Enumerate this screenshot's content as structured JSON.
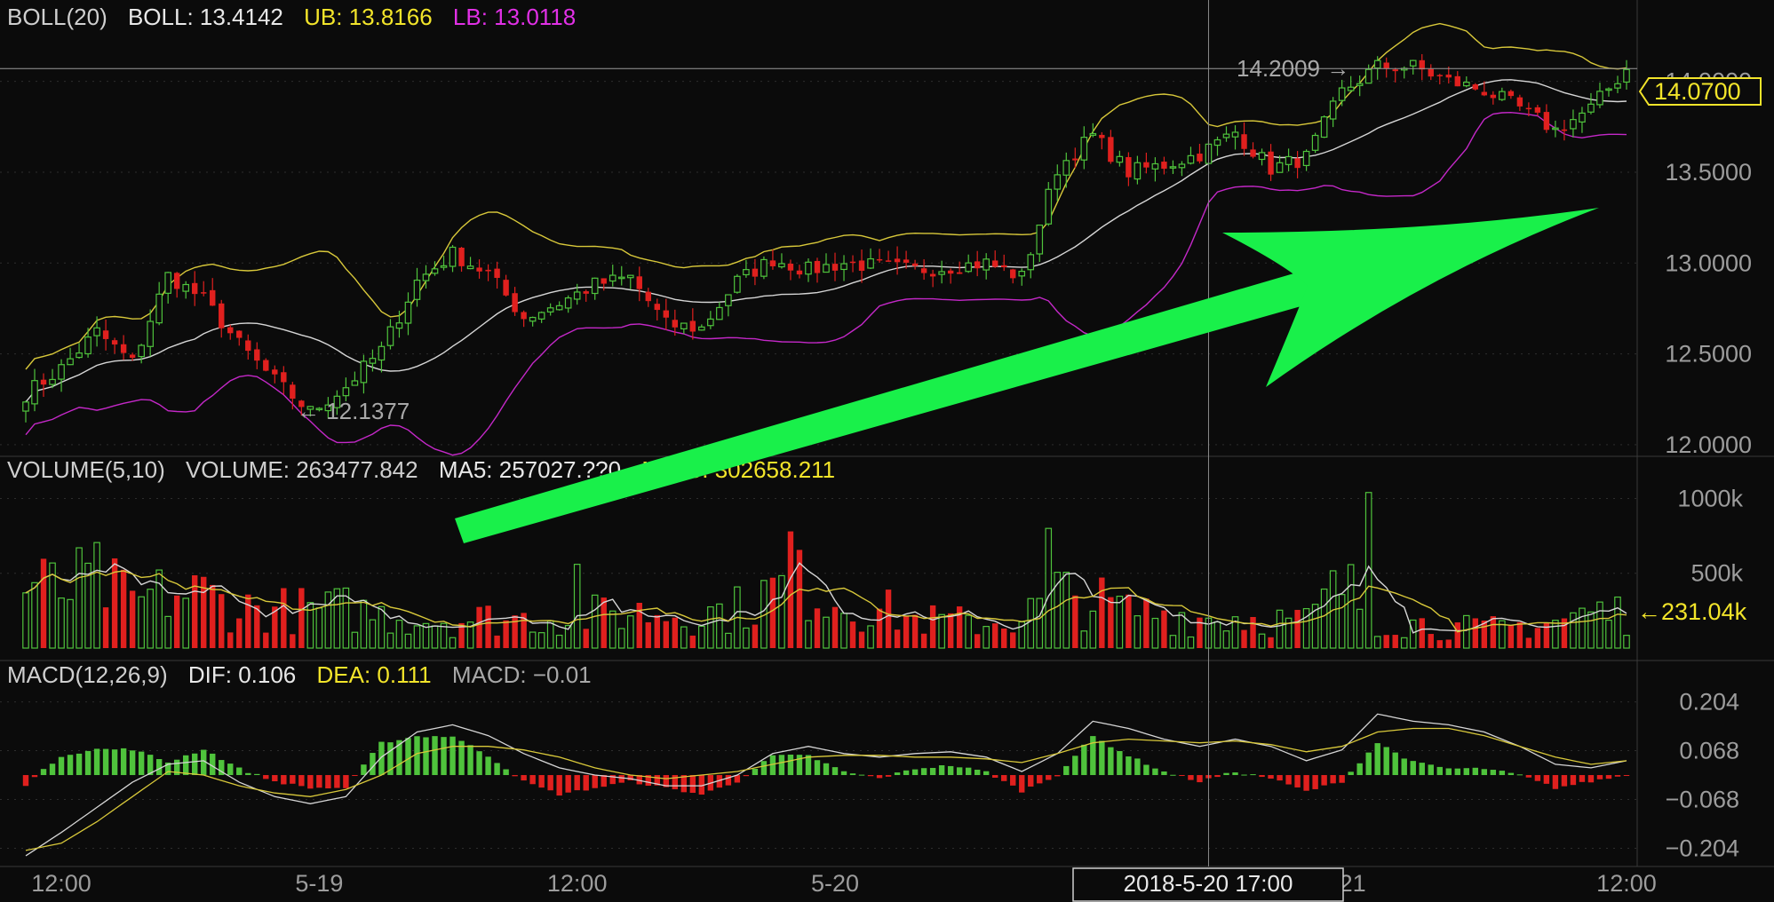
{
  "colors": {
    "background": "#0b0b0b",
    "up": "#4fc33c",
    "down": "#e0201e",
    "boll_mid": "#d6d6d6",
    "boll_ub": "#d8c83a",
    "boll_lb": "#c428c8",
    "ma5": "#d6d6d6",
    "ma10": "#d8c83a",
    "dif": "#d6d6d6",
    "dea": "#d8c83a",
    "label": "#b8b8b8",
    "yellow": "#f2e42a",
    "magenta": "#e130e6",
    "arrow": "#19f04a"
  },
  "header": {
    "boll": {
      "name": "BOLL(20)",
      "boll_label": "BOLL: 13.4142",
      "ub_label": "UB: 13.8166",
      "lb_label": "LB: 13.0118"
    },
    "volume": {
      "name": "VOLUME(5,10)",
      "volume_label": "VOLUME: 263477.842",
      "ma5_label": "MA5: 257027.??0",
      "ma10_label": "MA10: 302658.211"
    },
    "macd": {
      "name": "MACD(12,26,9)",
      "dif_label": "DIF: 0.106",
      "dea_label": "DEA: 0.111",
      "macd_label": "MACD: −0.01"
    }
  },
  "annotations": {
    "high_label": "14.2009 →",
    "low_label": "← 12.1377",
    "last_price": "14.0700",
    "last_volume": "←231.04k",
    "crosshair_time": "2018‑5‑20  17:00",
    "arrow_icon": "trend-up-arrow-icon"
  },
  "chart_data": {
    "type": "candlestick",
    "price_axis": {
      "ticks": [
        12.0,
        12.5,
        13.0,
        13.5,
        14.0
      ],
      "tick_labels": [
        "12.0000",
        "12.5000",
        "13.0000",
        "13.5000",
        "14.0000"
      ],
      "range": [
        11.98,
        14.35
      ]
    },
    "volume_axis": {
      "ticks": [
        500,
        1000
      ],
      "tick_labels": [
        "500k",
        "1000k"
      ],
      "range": [
        0,
        1080
      ]
    },
    "macd_axis": {
      "ticks": [
        0.204,
        0.068,
        -0.068,
        -0.204
      ],
      "tick_labels": [
        "0.204",
        "0.068",
        "−0.068",
        "−0.204"
      ],
      "range": [
        -0.24,
        0.25
      ]
    },
    "x_axis": {
      "labels": [
        "12:00",
        "5‑19",
        "12:00",
        "5‑20",
        "5‑21",
        "12:00"
      ],
      "positions": [
        4,
        33,
        62,
        91,
        148,
        177
      ]
    },
    "crosshair_index": 133,
    "anchors": {
      "close": [
        [
          0,
          12.28
        ],
        [
          4,
          12.42
        ],
        [
          8,
          12.62
        ],
        [
          12,
          12.45
        ],
        [
          16,
          12.93
        ],
        [
          20,
          12.8
        ],
        [
          24,
          12.55
        ],
        [
          28,
          12.35
        ],
        [
          32,
          12.18
        ],
        [
          36,
          12.32
        ],
        [
          40,
          12.52
        ],
        [
          44,
          12.9
        ],
        [
          48,
          13.05
        ],
        [
          52,
          12.94
        ],
        [
          56,
          12.7
        ],
        [
          60,
          12.78
        ],
        [
          64,
          12.88
        ],
        [
          68,
          12.92
        ],
        [
          72,
          12.66
        ],
        [
          76,
          12.64
        ],
        [
          80,
          12.9
        ],
        [
          84,
          13.02
        ],
        [
          88,
          12.96
        ],
        [
          92,
          13.0
        ],
        [
          96,
          12.98
        ],
        [
          100,
          12.96
        ],
        [
          104,
          12.98
        ],
        [
          108,
          13.0
        ],
        [
          112,
          12.92
        ],
        [
          116,
          13.52
        ],
        [
          120,
          13.7
        ],
        [
          124,
          13.5
        ],
        [
          128,
          13.54
        ],
        [
          132,
          13.6
        ],
        [
          136,
          13.72
        ],
        [
          140,
          13.52
        ],
        [
          144,
          13.58
        ],
        [
          148,
          13.94
        ],
        [
          152,
          14.08
        ],
        [
          156,
          14.08
        ],
        [
          160,
          14.0
        ],
        [
          164,
          13.95
        ],
        [
          168,
          13.85
        ],
        [
          172,
          13.73
        ],
        [
          176,
          13.85
        ],
        [
          180,
          14.07
        ]
      ],
      "volume": [
        [
          0,
          420
        ],
        [
          4,
          380
        ],
        [
          8,
          450
        ],
        [
          12,
          300
        ],
        [
          16,
          360
        ],
        [
          20,
          360
        ],
        [
          24,
          270
        ],
        [
          28,
          260
        ],
        [
          32,
          250
        ],
        [
          36,
          260
        ],
        [
          40,
          220
        ],
        [
          44,
          200
        ],
        [
          48,
          190
        ],
        [
          52,
          200
        ],
        [
          56,
          200
        ],
        [
          60,
          210
        ],
        [
          64,
          220
        ],
        [
          68,
          240
        ],
        [
          72,
          240
        ],
        [
          76,
          230
        ],
        [
          80,
          260
        ],
        [
          84,
          380
        ],
        [
          88,
          430
        ],
        [
          92,
          300
        ],
        [
          96,
          260
        ],
        [
          100,
          190
        ],
        [
          104,
          180
        ],
        [
          108,
          170
        ],
        [
          112,
          200
        ],
        [
          116,
          360
        ],
        [
          120,
          310
        ],
        [
          124,
          250
        ],
        [
          128,
          240
        ],
        [
          132,
          200
        ],
        [
          136,
          210
        ],
        [
          140,
          190
        ],
        [
          144,
          180
        ],
        [
          148,
          420
        ],
        [
          152,
          200
        ],
        [
          156,
          170
        ],
        [
          160,
          140
        ],
        [
          164,
          130
        ],
        [
          168,
          150
        ],
        [
          172,
          180
        ],
        [
          176,
          240
        ],
        [
          180,
          231
        ]
      ],
      "dif": [
        [
          0,
          -0.225
        ],
        [
          4,
          -0.16
        ],
        [
          8,
          -0.09
        ],
        [
          12,
          -0.02
        ],
        [
          16,
          0.03
        ],
        [
          20,
          0.04
        ],
        [
          24,
          -0.02
        ],
        [
          28,
          -0.06
        ],
        [
          32,
          -0.08
        ],
        [
          36,
          -0.06
        ],
        [
          40,
          0.05
        ],
        [
          44,
          0.12
        ],
        [
          48,
          0.14
        ],
        [
          52,
          0.11
        ],
        [
          56,
          0.06
        ],
        [
          60,
          0.02
        ],
        [
          64,
          0.0
        ],
        [
          68,
          -0.01
        ],
        [
          72,
          -0.03
        ],
        [
          76,
          -0.03
        ],
        [
          80,
          0.0
        ],
        [
          84,
          0.06
        ],
        [
          88,
          0.08
        ],
        [
          92,
          0.06
        ],
        [
          96,
          0.05
        ],
        [
          100,
          0.06
        ],
        [
          104,
          0.065
        ],
        [
          108,
          0.05
        ],
        [
          112,
          0.01
        ],
        [
          116,
          0.06
        ],
        [
          120,
          0.15
        ],
        [
          124,
          0.13
        ],
        [
          128,
          0.1
        ],
        [
          132,
          0.08
        ],
        [
          136,
          0.1
        ],
        [
          140,
          0.08
        ],
        [
          144,
          0.04
        ],
        [
          148,
          0.07
        ],
        [
          152,
          0.17
        ],
        [
          156,
          0.15
        ],
        [
          160,
          0.14
        ],
        [
          164,
          0.12
        ],
        [
          168,
          0.08
        ],
        [
          172,
          0.03
        ],
        [
          176,
          0.02
        ],
        [
          180,
          0.04
        ]
      ],
      "dea": [
        [
          0,
          -0.21
        ],
        [
          4,
          -0.19
        ],
        [
          8,
          -0.13
        ],
        [
          12,
          -0.06
        ],
        [
          16,
          0.01
        ],
        [
          20,
          0.0
        ],
        [
          24,
          -0.03
        ],
        [
          28,
          -0.05
        ],
        [
          32,
          -0.06
        ],
        [
          36,
          -0.04
        ],
        [
          40,
          0.0
        ],
        [
          44,
          0.06
        ],
        [
          48,
          0.08
        ],
        [
          52,
          0.08
        ],
        [
          56,
          0.07
        ],
        [
          60,
          0.05
        ],
        [
          64,
          0.02
        ],
        [
          68,
          0.0
        ],
        [
          72,
          -0.01
        ],
        [
          76,
          0.0
        ],
        [
          80,
          0.01
        ],
        [
          84,
          0.03
        ],
        [
          88,
          0.05
        ],
        [
          92,
          0.055
        ],
        [
          96,
          0.055
        ],
        [
          100,
          0.05
        ],
        [
          104,
          0.05
        ],
        [
          108,
          0.045
        ],
        [
          112,
          0.035
        ],
        [
          116,
          0.06
        ],
        [
          120,
          0.09
        ],
        [
          124,
          0.1
        ],
        [
          128,
          0.095
        ],
        [
          132,
          0.09
        ],
        [
          136,
          0.095
        ],
        [
          140,
          0.085
        ],
        [
          144,
          0.065
        ],
        [
          148,
          0.08
        ],
        [
          152,
          0.12
        ],
        [
          156,
          0.13
        ],
        [
          160,
          0.13
        ],
        [
          164,
          0.11
        ],
        [
          168,
          0.08
        ],
        [
          172,
          0.05
        ],
        [
          176,
          0.03
        ],
        [
          180,
          0.04
        ]
      ]
    },
    "candle_count": 181,
    "macd_note": "MACD bars = DIF - DEA; BOLL = 20-period SMA ± 2σ; MA5/MA10 of volume"
  }
}
